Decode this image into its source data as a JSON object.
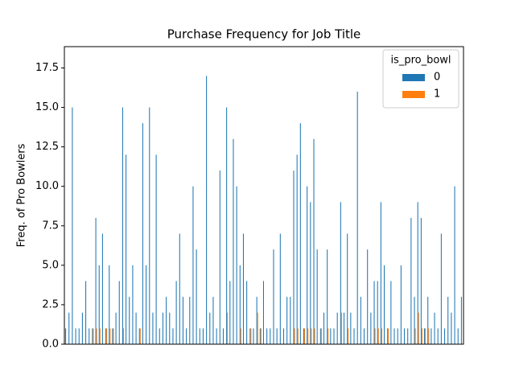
{
  "chart_data": {
    "type": "bar",
    "title": "Purchase Frequency for Job Title",
    "ylabel": "Freq. of Pro Bowlers",
    "legend_title": "is_pro_bowl",
    "legend_loc": "upper right",
    "categories": [
      null,
      null,
      null,
      null,
      null,
      null,
      null,
      null,
      null,
      null,
      null,
      null,
      null,
      null,
      null,
      null,
      null,
      null,
      null,
      null,
      null,
      null,
      null,
      null,
      null,
      null,
      null,
      null,
      null,
      null,
      null,
      null,
      null,
      null,
      null,
      null,
      null,
      null,
      null,
      null,
      null,
      null,
      null,
      null,
      null,
      null,
      null,
      null,
      null,
      null,
      null,
      null,
      null,
      null,
      null,
      null,
      null,
      null,
      null,
      null,
      null,
      null,
      null,
      null,
      null,
      null,
      null,
      null,
      null,
      null,
      null,
      null,
      null,
      null,
      null,
      null,
      null,
      null,
      null,
      null,
      null,
      null,
      null,
      null,
      null,
      null,
      null,
      null,
      null,
      null,
      null,
      null,
      null,
      null,
      null,
      null,
      null,
      null,
      null,
      null,
      null,
      null,
      null,
      null,
      null,
      null,
      null,
      null,
      null,
      null,
      null,
      null,
      null,
      null,
      null,
      null,
      null,
      null,
      null
    ],
    "series": [
      {
        "name": "0",
        "color": "#1f77b4",
        "values": [
          1,
          2,
          15,
          1,
          1,
          2,
          4,
          1,
          1,
          8,
          5,
          7,
          1,
          5,
          1,
          2,
          4,
          15,
          12,
          3,
          5,
          2,
          1,
          14,
          5,
          15,
          2,
          12,
          1,
          2,
          3,
          2,
          1,
          4,
          7,
          3,
          1,
          3,
          10,
          6,
          1,
          1,
          17,
          2,
          3,
          1,
          11,
          1,
          15,
          4,
          13,
          10,
          5,
          7,
          4,
          1,
          1,
          3,
          1,
          4,
          1,
          1,
          6,
          1,
          7,
          1,
          3,
          3,
          11,
          12,
          14,
          1,
          10,
          9,
          13,
          6,
          1,
          2,
          6,
          1,
          1,
          2,
          9,
          2,
          7,
          2,
          1,
          16,
          3,
          1,
          6,
          2,
          4,
          4,
          9,
          5,
          1,
          4,
          1,
          1,
          5,
          1,
          1,
          8,
          3,
          9,
          8,
          1,
          3,
          1,
          2,
          1,
          7,
          1,
          3,
          2,
          10,
          1,
          3
        ]
      },
      {
        "name": "1",
        "color": "#ff7f0e",
        "values": [
          0,
          0,
          0,
          0,
          0,
          0,
          0,
          0,
          1,
          1,
          1,
          0,
          1,
          1,
          1,
          0,
          0,
          1,
          0,
          0,
          0,
          0,
          1,
          0,
          0,
          0,
          0,
          0,
          0,
          0,
          0,
          0,
          0,
          0,
          0,
          0,
          0,
          0,
          0,
          0,
          0,
          0,
          0,
          0,
          0,
          0,
          0,
          0,
          2,
          0,
          0,
          0,
          1,
          0,
          0,
          1,
          0,
          2,
          1,
          0,
          0,
          0,
          0,
          0,
          0,
          0,
          0,
          0,
          1,
          1,
          0,
          1,
          1,
          1,
          1,
          0,
          1,
          0,
          1,
          0,
          0,
          0,
          2,
          0,
          1,
          0,
          0,
          0,
          0,
          0,
          0,
          0,
          1,
          1,
          1,
          0,
          1,
          0,
          0,
          0,
          0,
          0,
          0,
          0,
          1,
          2,
          1,
          1,
          1,
          0,
          0,
          0,
          0,
          0,
          0,
          0,
          0,
          0,
          0
        ]
      }
    ],
    "ylim": [
      0,
      18.85
    ],
    "yticks": [
      {
        "value": 0,
        "label": "0.0"
      },
      2.5,
      {
        "value": 5,
        "label": "5.0"
      },
      7.5,
      {
        "value": 10,
        "label": "10.0"
      },
      12.5,
      {
        "value": 15,
        "label": "15.0"
      },
      17.5
    ]
  }
}
